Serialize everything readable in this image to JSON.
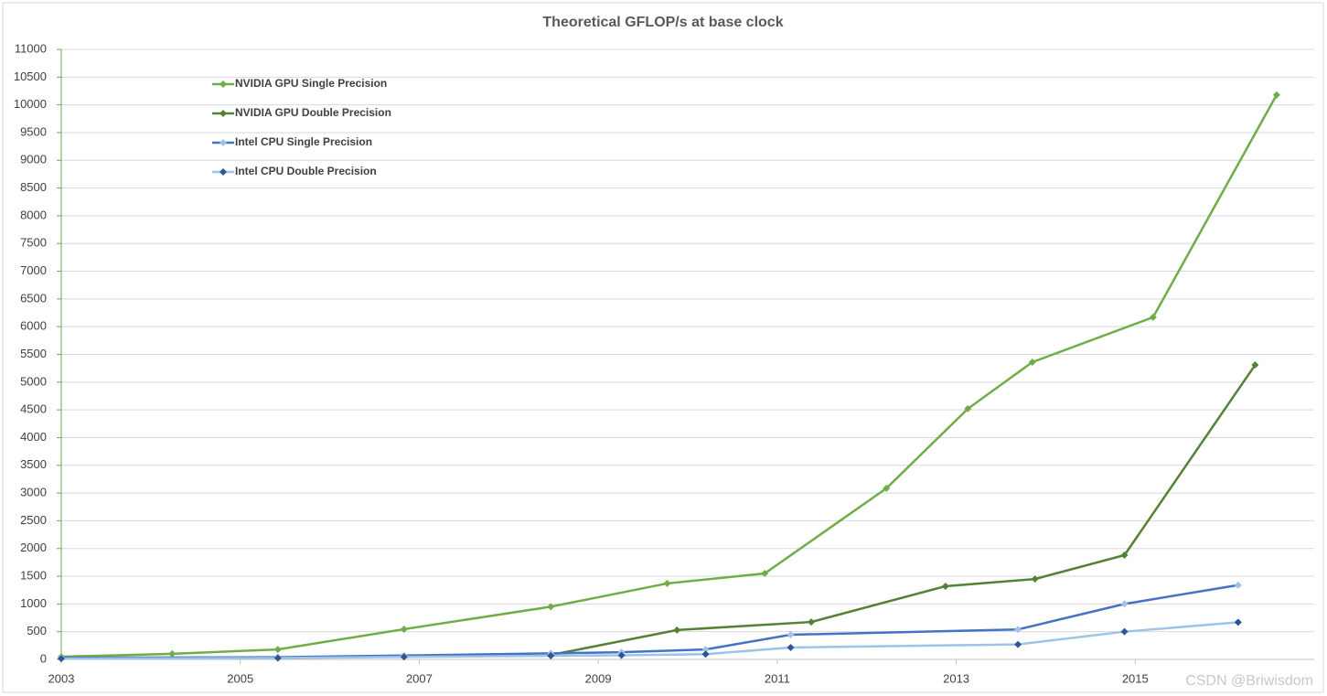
{
  "chart_data": {
    "type": "line",
    "title": "Theoretical GFLOP/s at base clock",
    "watermark": "CSDN @Briwisdom",
    "xlim": [
      2003,
      2017
    ],
    "xticks": [
      2003,
      2005,
      2007,
      2009,
      2011,
      2013,
      2015
    ],
    "ylim": [
      0,
      11000
    ],
    "yticks": [
      0,
      500,
      1000,
      1500,
      2000,
      2500,
      3000,
      3500,
      4000,
      4500,
      5000,
      5500,
      6000,
      6500,
      7000,
      7500,
      8000,
      8500,
      9000,
      9500,
      10000,
      10500,
      11000
    ],
    "grid": true,
    "legend": "upper left",
    "series": [
      {
        "name": "NVIDIA GPU Single Precision",
        "color": "#70ad47",
        "marker_color": "#70ad47",
        "x": [
          2003.0,
          2004.24,
          2005.42,
          2006.83,
          2008.47,
          2009.77,
          2010.86,
          2012.22,
          2013.13,
          2013.85,
          2015.2,
          2016.58
        ],
        "values": [
          50,
          100,
          180,
          545,
          950,
          1370,
          1550,
          3085,
          4520,
          5360,
          6170,
          10180
        ]
      },
      {
        "name": "NVIDIA GPU Double Precision",
        "color": "#548235",
        "marker_color": "#548235",
        "x": [
          2008.47,
          2009.88,
          2011.38,
          2012.88,
          2013.88,
          2014.88,
          2016.34
        ],
        "values": [
          80,
          530,
          675,
          1320,
          1450,
          1880,
          5310
        ]
      },
      {
        "name": "Intel CPU Single Precision",
        "color": "#4472c4",
        "marker_color": "#9dc3e6",
        "x": [
          2003.0,
          2005.42,
          2006.83,
          2008.47,
          2009.26,
          2010.2,
          2011.15,
          2013.69,
          2014.88,
          2016.15
        ],
        "values": [
          30,
          40,
          70,
          110,
          130,
          180,
          445,
          540,
          1000,
          1340
        ]
      },
      {
        "name": "Intel CPU Double Precision",
        "color": "#9dc3e6",
        "marker_color": "#2f5597",
        "x": [
          2003.0,
          2005.42,
          2006.83,
          2008.47,
          2009.26,
          2010.2,
          2011.15,
          2013.69,
          2014.88,
          2016.15
        ],
        "values": [
          15,
          25,
          45,
          65,
          75,
          95,
          215,
          270,
          500,
          670
        ]
      }
    ]
  }
}
